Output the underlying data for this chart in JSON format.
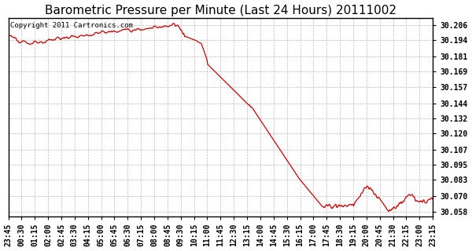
{
  "title": "Barometric Pressure per Minute (Last 24 Hours) 20111002",
  "copyright": "Copyright 2011 Cartronics.com",
  "line_color": "#cc0000",
  "bg_color": "#ffffff",
  "plot_bg_color": "#ffffff",
  "grid_color": "#aaaaaa",
  "yticks": [
    30.058,
    30.07,
    30.083,
    30.095,
    30.107,
    30.12,
    30.132,
    30.144,
    30.157,
    30.169,
    30.181,
    30.194,
    30.206
  ],
  "ylim": [
    30.054,
    30.2115
  ],
  "xtick_labels": [
    "23:45",
    "00:30",
    "01:15",
    "02:00",
    "02:45",
    "03:30",
    "04:15",
    "05:00",
    "05:45",
    "06:30",
    "07:15",
    "08:00",
    "08:45",
    "09:30",
    "10:15",
    "11:00",
    "11:45",
    "12:30",
    "13:15",
    "14:00",
    "14:45",
    "15:30",
    "16:15",
    "17:00",
    "17:45",
    "18:30",
    "19:15",
    "20:00",
    "20:45",
    "21:30",
    "22:15",
    "23:00",
    "23:15"
  ],
  "title_fontsize": 11,
  "tick_fontsize": 7,
  "copyright_fontsize": 6.5
}
